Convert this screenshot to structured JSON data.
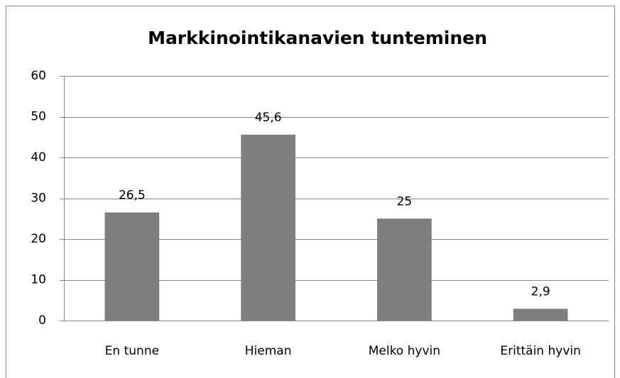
{
  "chart_data": {
    "type": "bar",
    "title": "Markkinointikanavien tunteminen",
    "categories": [
      "En tunne",
      "Hieman",
      "Melko hyvin",
      "Erittäin hyvin"
    ],
    "values": [
      26.5,
      45.6,
      25,
      2.9
    ],
    "value_labels": [
      "26,5",
      "45,6",
      "25",
      "2,9"
    ],
    "color": "#7f7f7f",
    "ylim": [
      0,
      60
    ],
    "yticks": [
      0,
      10,
      20,
      30,
      40,
      50,
      60
    ],
    "grid": true
  }
}
